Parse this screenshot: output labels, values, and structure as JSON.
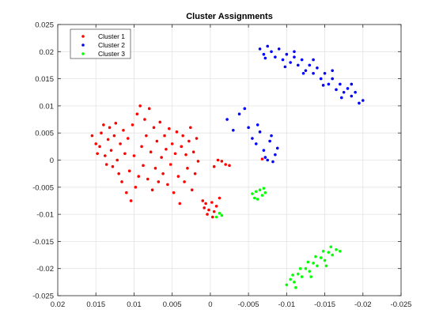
{
  "chart_data": {
    "type": "scatter",
    "title": "Cluster Assignments",
    "xlabel": "",
    "ylabel": "",
    "xlim": [
      0.02,
      -0.025
    ],
    "ylim": [
      -0.025,
      0.025
    ],
    "x_reversed": true,
    "xticks": [
      0.02,
      0.015,
      0.01,
      0.005,
      0,
      -0.005,
      -0.01,
      -0.015,
      -0.02,
      -0.025
    ],
    "xtick_labels": [
      "0.02",
      "0.015",
      "0.01",
      "0.005",
      "0",
      "-0.005",
      "-0.01",
      "-0.015",
      "-0.02",
      "-0.025"
    ],
    "yticks": [
      0.025,
      0.02,
      0.015,
      0.01,
      0.005,
      0,
      -0.005,
      -0.01,
      -0.015,
      -0.02,
      -0.025
    ],
    "ytick_labels": [
      "0.025",
      "0.02",
      "0.015",
      "0.01",
      "0.005",
      "0",
      "-0.005",
      "-0.01",
      "-0.015",
      "-0.02",
      "-0.025"
    ],
    "grid": true,
    "legend_position": "top-left",
    "series": [
      {
        "name": "Cluster 1",
        "color": "#ff0000",
        "points": [
          [
            0.0155,
            0.0045
          ],
          [
            0.015,
            0.003
          ],
          [
            0.0148,
            0.0012
          ],
          [
            0.0145,
            0.0025
          ],
          [
            0.0143,
            0.005
          ],
          [
            0.014,
            0.0065
          ],
          [
            0.0138,
            0.0008
          ],
          [
            0.0136,
            -0.0008
          ],
          [
            0.0134,
            0.0038
          ],
          [
            0.0132,
            0.006
          ],
          [
            0.013,
            0.0018
          ],
          [
            0.0128,
            -0.0012
          ],
          [
            0.0126,
            0.0045
          ],
          [
            0.0124,
            0.0068
          ],
          [
            0.0122,
            0.0
          ],
          [
            0.012,
            -0.0025
          ],
          [
            0.0118,
            0.003
          ],
          [
            0.0116,
            -0.004
          ],
          [
            0.0114,
            0.0055
          ],
          [
            0.0112,
            0.0012
          ],
          [
            0.011,
            -0.006
          ],
          [
            0.0108,
            0.004
          ],
          [
            0.0106,
            -0.002
          ],
          [
            0.0104,
            -0.0075
          ],
          [
            0.0102,
            0.0065
          ],
          [
            0.01,
            0.0008
          ],
          [
            0.0098,
            -0.005
          ],
          [
            0.0096,
            0.0085
          ],
          [
            0.0094,
            -0.003
          ],
          [
            0.0092,
            0.01
          ],
          [
            0.009,
            0.0025
          ],
          [
            0.0088,
            -0.001
          ],
          [
            0.0086,
            0.0075
          ],
          [
            0.0084,
            0.0045
          ],
          [
            0.0082,
            -0.0035
          ],
          [
            0.008,
            0.0095
          ],
          [
            0.0078,
            0.0015
          ],
          [
            0.0076,
            -0.0055
          ],
          [
            0.0074,
            0.006
          ],
          [
            0.0072,
            -0.0015
          ],
          [
            0.007,
            0.0035
          ],
          [
            0.0068,
            -0.004
          ],
          [
            0.0066,
            0.007
          ],
          [
            0.0064,
            0.0005
          ],
          [
            0.0062,
            -0.0025
          ],
          [
            0.006,
            0.0045
          ],
          [
            0.0058,
            0.002
          ],
          [
            0.0056,
            -0.0045
          ],
          [
            0.0054,
            0.0058
          ],
          [
            0.0052,
            -0.0008
          ],
          [
            0.005,
            0.003
          ],
          [
            0.0048,
            -0.006
          ],
          [
            0.0046,
            0.0012
          ],
          [
            0.0044,
            0.0052
          ],
          [
            0.0042,
            -0.003
          ],
          [
            0.004,
            -0.008
          ],
          [
            0.0038,
            0.0025
          ],
          [
            0.0036,
            0.0045
          ],
          [
            0.0034,
            -0.004
          ],
          [
            0.0032,
            0.001
          ],
          [
            0.003,
            -0.0015
          ],
          [
            0.0028,
            0.0035
          ],
          [
            0.0026,
            0.006
          ],
          [
            0.0024,
            -0.0055
          ],
          [
            0.0022,
            0.0015
          ],
          [
            0.002,
            -0.0025
          ],
          [
            0.0018,
            0.004
          ],
          [
            0.0016,
            -0.0002
          ],
          [
            0.001,
            -0.0075
          ],
          [
            0.0008,
            -0.0088
          ],
          [
            0.0006,
            -0.008
          ],
          [
            0.0004,
            -0.01
          ],
          [
            0.0002,
            -0.0092
          ],
          [
            -0.0002,
            -0.0078
          ],
          [
            -0.0005,
            -0.0095
          ],
          [
            -0.0008,
            -0.0085
          ],
          [
            -0.0012,
            -0.007
          ],
          [
            -0.0003,
            -0.0105
          ],
          [
            -0.001,
            0.0
          ],
          [
            -0.0015,
            -0.0002
          ],
          [
            -0.002,
            -0.0008
          ],
          [
            -0.0025,
            -0.001
          ],
          [
            -0.0005,
            -0.0012
          ],
          [
            -0.0068,
            0.0002
          ]
        ]
      },
      {
        "name": "Cluster 2",
        "color": "#0000ff",
        "points": [
          [
            -0.0065,
            0.0205
          ],
          [
            -0.007,
            0.0195
          ],
          [
            -0.0075,
            0.021
          ],
          [
            -0.008,
            0.02
          ],
          [
            -0.0085,
            0.019
          ],
          [
            -0.009,
            0.0205
          ],
          [
            -0.0095,
            0.0185
          ],
          [
            -0.01,
            0.0195
          ],
          [
            -0.0105,
            0.018
          ],
          [
            -0.011,
            0.019
          ],
          [
            -0.0115,
            0.0175
          ],
          [
            -0.012,
            0.0185
          ],
          [
            -0.0125,
            0.0165
          ],
          [
            -0.013,
            0.0175
          ],
          [
            -0.0135,
            0.016
          ],
          [
            -0.014,
            0.017
          ],
          [
            -0.0145,
            0.015
          ],
          [
            -0.015,
            0.016
          ],
          [
            -0.0155,
            0.014
          ],
          [
            -0.016,
            0.015
          ],
          [
            -0.0165,
            0.013
          ],
          [
            -0.017,
            0.014
          ],
          [
            -0.0175,
            0.0125
          ],
          [
            -0.018,
            0.0132
          ],
          [
            -0.0185,
            0.0118
          ],
          [
            -0.019,
            0.0125
          ],
          [
            -0.0195,
            0.0105
          ],
          [
            -0.02,
            0.011
          ],
          [
            -0.0072,
            0.0188
          ],
          [
            -0.0098,
            0.0172
          ],
          [
            -0.0122,
            0.016
          ],
          [
            -0.0148,
            0.0138
          ],
          [
            -0.0172,
            0.0115
          ],
          [
            -0.011,
            0.02
          ],
          [
            -0.0135,
            0.0185
          ],
          [
            -0.016,
            0.0165
          ],
          [
            -0.0185,
            0.014
          ],
          [
            -0.0022,
            0.0075
          ],
          [
            -0.003,
            0.0055
          ],
          [
            -0.0038,
            0.0085
          ],
          [
            -0.0045,
            0.0095
          ],
          [
            -0.005,
            0.006
          ],
          [
            -0.0055,
            0.004
          ],
          [
            -0.006,
            0.003
          ],
          [
            -0.0065,
            0.0052
          ],
          [
            -0.007,
            0.0018
          ],
          [
            -0.0075,
            0.0
          ],
          [
            -0.008,
            0.0045
          ],
          [
            -0.0085,
            0.001
          ],
          [
            -0.0088,
            0.0022
          ],
          [
            -0.0078,
            0.0035
          ],
          [
            -0.0062,
            0.0065
          ],
          [
            -0.0072,
            0.0005
          ],
          [
            -0.0082,
            -0.0003
          ]
        ]
      },
      {
        "name": "Cluster 3",
        "color": "#00ff00",
        "points": [
          [
            -0.0055,
            -0.0062
          ],
          [
            -0.006,
            -0.0058
          ],
          [
            -0.0065,
            -0.0055
          ],
          [
            -0.007,
            -0.0052
          ],
          [
            -0.0058,
            -0.007
          ],
          [
            -0.0068,
            -0.0065
          ],
          [
            -0.0072,
            -0.006
          ],
          [
            -0.0062,
            -0.0072
          ],
          [
            -0.0008,
            -0.0105
          ],
          [
            -0.0012,
            -0.0098
          ],
          [
            -0.0015,
            -0.0102
          ],
          [
            -0.01,
            -0.023
          ],
          [
            -0.0105,
            -0.022
          ],
          [
            -0.011,
            -0.0225
          ],
          [
            -0.0115,
            -0.021
          ],
          [
            -0.012,
            -0.0215
          ],
          [
            -0.0125,
            -0.02
          ],
          [
            -0.013,
            -0.0205
          ],
          [
            -0.0135,
            -0.019
          ],
          [
            -0.014,
            -0.0195
          ],
          [
            -0.0145,
            -0.018
          ],
          [
            -0.015,
            -0.0185
          ],
          [
            -0.0155,
            -0.017
          ],
          [
            -0.016,
            -0.0175
          ],
          [
            -0.0165,
            -0.0165
          ],
          [
            -0.017,
            -0.0168
          ],
          [
            -0.0108,
            -0.0212
          ],
          [
            -0.0118,
            -0.02
          ],
          [
            -0.0128,
            -0.0188
          ],
          [
            -0.0138,
            -0.0178
          ],
          [
            -0.0148,
            -0.0168
          ],
          [
            -0.0158,
            -0.016
          ],
          [
            -0.0112,
            -0.0235
          ],
          [
            -0.0132,
            -0.0215
          ],
          [
            -0.0152,
            -0.0195
          ]
        ]
      }
    ]
  }
}
